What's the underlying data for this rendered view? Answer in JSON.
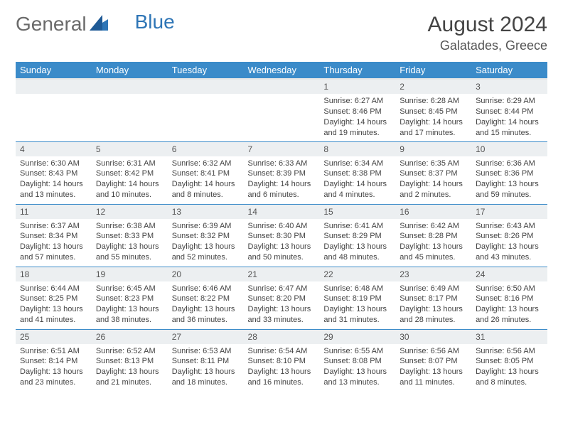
{
  "logo": {
    "part1": "General",
    "part2": "Blue"
  },
  "title": "August 2024",
  "location": "Galatades, Greece",
  "colors": {
    "header_bg": "#3b8bc9",
    "header_text": "#ffffff",
    "daynum_bg": "#eceff1",
    "row_divider": "#3b8bc9",
    "logo_blue": "#2e75b6",
    "logo_gray": "#6a6a6a"
  },
  "weekdays": [
    "Sunday",
    "Monday",
    "Tuesday",
    "Wednesday",
    "Thursday",
    "Friday",
    "Saturday"
  ],
  "weeks": [
    [
      null,
      null,
      null,
      null,
      {
        "n": "1",
        "sr": "6:27 AM",
        "ss": "8:46 PM",
        "dl": "14 hours and 19 minutes."
      },
      {
        "n": "2",
        "sr": "6:28 AM",
        "ss": "8:45 PM",
        "dl": "14 hours and 17 minutes."
      },
      {
        "n": "3",
        "sr": "6:29 AM",
        "ss": "8:44 PM",
        "dl": "14 hours and 15 minutes."
      }
    ],
    [
      {
        "n": "4",
        "sr": "6:30 AM",
        "ss": "8:43 PM",
        "dl": "14 hours and 13 minutes."
      },
      {
        "n": "5",
        "sr": "6:31 AM",
        "ss": "8:42 PM",
        "dl": "14 hours and 10 minutes."
      },
      {
        "n": "6",
        "sr": "6:32 AM",
        "ss": "8:41 PM",
        "dl": "14 hours and 8 minutes."
      },
      {
        "n": "7",
        "sr": "6:33 AM",
        "ss": "8:39 PM",
        "dl": "14 hours and 6 minutes."
      },
      {
        "n": "8",
        "sr": "6:34 AM",
        "ss": "8:38 PM",
        "dl": "14 hours and 4 minutes."
      },
      {
        "n": "9",
        "sr": "6:35 AM",
        "ss": "8:37 PM",
        "dl": "14 hours and 2 minutes."
      },
      {
        "n": "10",
        "sr": "6:36 AM",
        "ss": "8:36 PM",
        "dl": "13 hours and 59 minutes."
      }
    ],
    [
      {
        "n": "11",
        "sr": "6:37 AM",
        "ss": "8:34 PM",
        "dl": "13 hours and 57 minutes."
      },
      {
        "n": "12",
        "sr": "6:38 AM",
        "ss": "8:33 PM",
        "dl": "13 hours and 55 minutes."
      },
      {
        "n": "13",
        "sr": "6:39 AM",
        "ss": "8:32 PM",
        "dl": "13 hours and 52 minutes."
      },
      {
        "n": "14",
        "sr": "6:40 AM",
        "ss": "8:30 PM",
        "dl": "13 hours and 50 minutes."
      },
      {
        "n": "15",
        "sr": "6:41 AM",
        "ss": "8:29 PM",
        "dl": "13 hours and 48 minutes."
      },
      {
        "n": "16",
        "sr": "6:42 AM",
        "ss": "8:28 PM",
        "dl": "13 hours and 45 minutes."
      },
      {
        "n": "17",
        "sr": "6:43 AM",
        "ss": "8:26 PM",
        "dl": "13 hours and 43 minutes."
      }
    ],
    [
      {
        "n": "18",
        "sr": "6:44 AM",
        "ss": "8:25 PM",
        "dl": "13 hours and 41 minutes."
      },
      {
        "n": "19",
        "sr": "6:45 AM",
        "ss": "8:23 PM",
        "dl": "13 hours and 38 minutes."
      },
      {
        "n": "20",
        "sr": "6:46 AM",
        "ss": "8:22 PM",
        "dl": "13 hours and 36 minutes."
      },
      {
        "n": "21",
        "sr": "6:47 AM",
        "ss": "8:20 PM",
        "dl": "13 hours and 33 minutes."
      },
      {
        "n": "22",
        "sr": "6:48 AM",
        "ss": "8:19 PM",
        "dl": "13 hours and 31 minutes."
      },
      {
        "n": "23",
        "sr": "6:49 AM",
        "ss": "8:17 PM",
        "dl": "13 hours and 28 minutes."
      },
      {
        "n": "24",
        "sr": "6:50 AM",
        "ss": "8:16 PM",
        "dl": "13 hours and 26 minutes."
      }
    ],
    [
      {
        "n": "25",
        "sr": "6:51 AM",
        "ss": "8:14 PM",
        "dl": "13 hours and 23 minutes."
      },
      {
        "n": "26",
        "sr": "6:52 AM",
        "ss": "8:13 PM",
        "dl": "13 hours and 21 minutes."
      },
      {
        "n": "27",
        "sr": "6:53 AM",
        "ss": "8:11 PM",
        "dl": "13 hours and 18 minutes."
      },
      {
        "n": "28",
        "sr": "6:54 AM",
        "ss": "8:10 PM",
        "dl": "13 hours and 16 minutes."
      },
      {
        "n": "29",
        "sr": "6:55 AM",
        "ss": "8:08 PM",
        "dl": "13 hours and 13 minutes."
      },
      {
        "n": "30",
        "sr": "6:56 AM",
        "ss": "8:07 PM",
        "dl": "13 hours and 11 minutes."
      },
      {
        "n": "31",
        "sr": "6:56 AM",
        "ss": "8:05 PM",
        "dl": "13 hours and 8 minutes."
      }
    ]
  ],
  "labels": {
    "sunrise": "Sunrise:",
    "sunset": "Sunset:",
    "daylight": "Daylight:"
  }
}
